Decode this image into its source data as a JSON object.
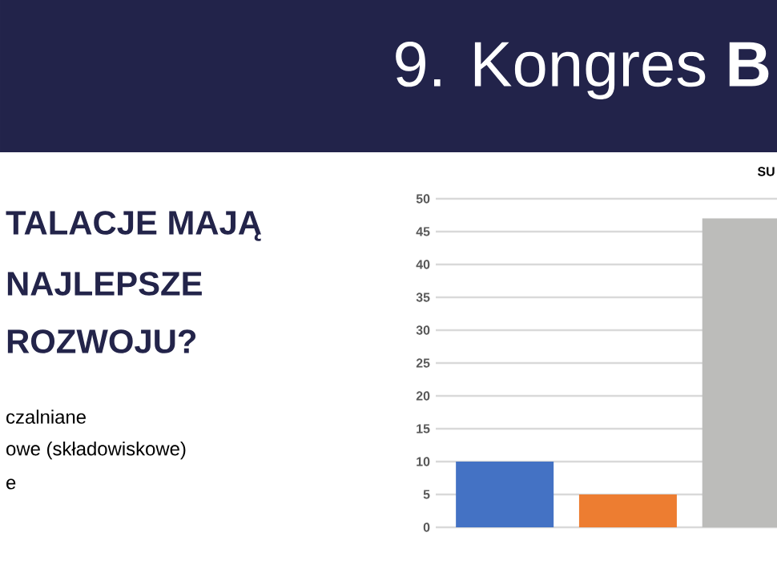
{
  "chart_data": {
    "type": "bar",
    "title": "SU",
    "annotations": [
      "9. Kongres **B**",
      "TALACJE MAJĄ",
      "NAJLEPSZE",
      "ROZWOJU?",
      "czalniane",
      "owe (składowiskowe)",
      "e"
    ],
    "categories": [
      null,
      null,
      null
    ],
    "values": [
      10,
      5,
      47
    ],
    "colors": [
      "#4472c4",
      "#ed7d31",
      "#bcbcba"
    ],
    "ylim": [
      0,
      50
    ],
    "yticks": [
      0,
      5,
      10,
      15,
      20,
      25,
      30,
      35,
      40,
      45,
      50
    ],
    "grid": "y",
    "tick_labels": "y"
  }
}
